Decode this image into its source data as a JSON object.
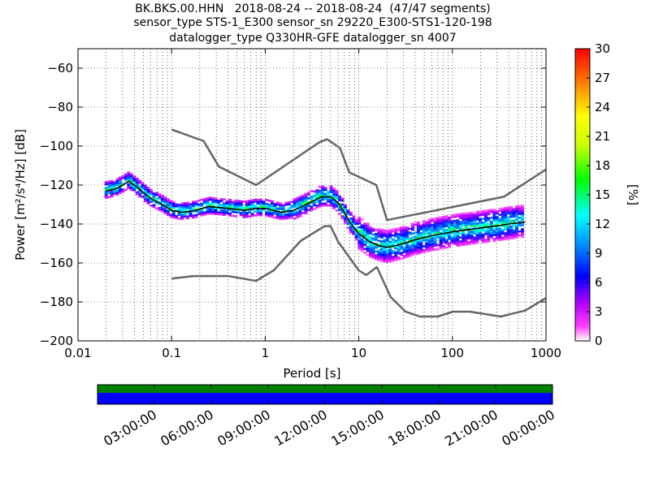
{
  "figure": {
    "title_lines": [
      "BK.BKS.00.HHN   2018-08-24 -- 2018-08-24  (47/47 segments)",
      "sensor_type STS-1_E300 sensor_sn 29220_E300-STS1-120-198",
      "datalogger_type Q330HR-GFE datalogger_sn 4007"
    ]
  },
  "chart_data": [
    {
      "type": "heatmap",
      "title": "",
      "xlabel": "Period [s]",
      "ylabel": "Power [m²/s⁴/Hz] [dB]",
      "xscale": "log",
      "xlim": [
        0.01,
        1000
      ],
      "ylim": [
        -200,
        -50
      ],
      "xtick_labels": [
        "0.01",
        "0.1",
        "1",
        "10",
        "100",
        "1000"
      ],
      "ytick_values": [
        -200,
        -180,
        -160,
        -140,
        -120,
        -100,
        -80,
        -60
      ],
      "ytick_labels": [
        "−200",
        "−180",
        "−160",
        "−140",
        "−120",
        "−100",
        "−80",
        "−60"
      ],
      "grid": true,
      "colorbar": {
        "label": "[%]",
        "range": [
          0,
          30
        ],
        "tick_values": [
          0,
          3,
          6,
          9,
          12,
          15,
          18,
          21,
          24,
          27,
          30
        ],
        "tick_labels": [
          "0",
          "3",
          "6",
          "9",
          "12",
          "15",
          "18",
          "21",
          "24",
          "27",
          "30"
        ],
        "colormap": "pqlx"
      },
      "series": [
        {
          "role": "mean_psd",
          "color": "#000000",
          "x": [
            0.02,
            0.025,
            0.03,
            0.035,
            0.045,
            0.06,
            0.08,
            0.1,
            0.13,
            0.18,
            0.25,
            0.4,
            0.6,
            0.8,
            1,
            1.5,
            2,
            2.5,
            3,
            4,
            5,
            6,
            7,
            8,
            10,
            13,
            16,
            20,
            25,
            30,
            40,
            60,
            100,
            200,
            300,
            400,
            600
          ],
          "y": [
            -123,
            -122,
            -120,
            -118,
            -122,
            -127,
            -130,
            -133,
            -134,
            -133,
            -131,
            -132,
            -133,
            -132,
            -132,
            -134,
            -133,
            -131,
            -129,
            -126,
            -126,
            -129,
            -134,
            -139,
            -145,
            -149,
            -151,
            -152,
            -151,
            -150,
            -148,
            -146,
            -144,
            -142,
            -141,
            -140,
            -139
          ]
        },
        {
          "role": "high_noise_model",
          "color": "#666666",
          "x": [
            0.1,
            0.22,
            0.32,
            0.8,
            3.8,
            4.6,
            6.3,
            7.9,
            15.4,
            20,
            354.8,
            1000
          ],
          "y": [
            -91.5,
            -97.4,
            -110.5,
            -120,
            -98,
            -96.5,
            -101,
            -113.5,
            -120,
            -138,
            -126,
            -112
          ]
        },
        {
          "role": "low_noise_model",
          "color": "#666666",
          "x": [
            0.1,
            0.17,
            0.4,
            0.8,
            1.24,
            2.4,
            4.3,
            5,
            6,
            10,
            12,
            15.6,
            21.9,
            31.6,
            45,
            70,
            101,
            154,
            328,
            600,
            1000
          ],
          "y": [
            -168,
            -166.7,
            -166.7,
            -169.2,
            -163.7,
            -148.6,
            -141.1,
            -141.1,
            -149,
            -163.8,
            -166.2,
            -162.1,
            -177.5,
            -185,
            -187.5,
            -187.5,
            -185,
            -185,
            -187.5,
            -184.4,
            -178
          ]
        }
      ]
    },
    {
      "type": "timeline",
      "tick_labels": [
        "03:00:00",
        "06:00:00",
        "09:00:00",
        "12:00:00",
        "15:00:00",
        "18:00:00",
        "21:00:00",
        "00:00:00"
      ],
      "bands": [
        {
          "name": "",
          "color": "#008000",
          "coverage": 1.0
        },
        {
          "name": "",
          "color": "#0000ff",
          "coverage": 1.0
        }
      ]
    }
  ]
}
